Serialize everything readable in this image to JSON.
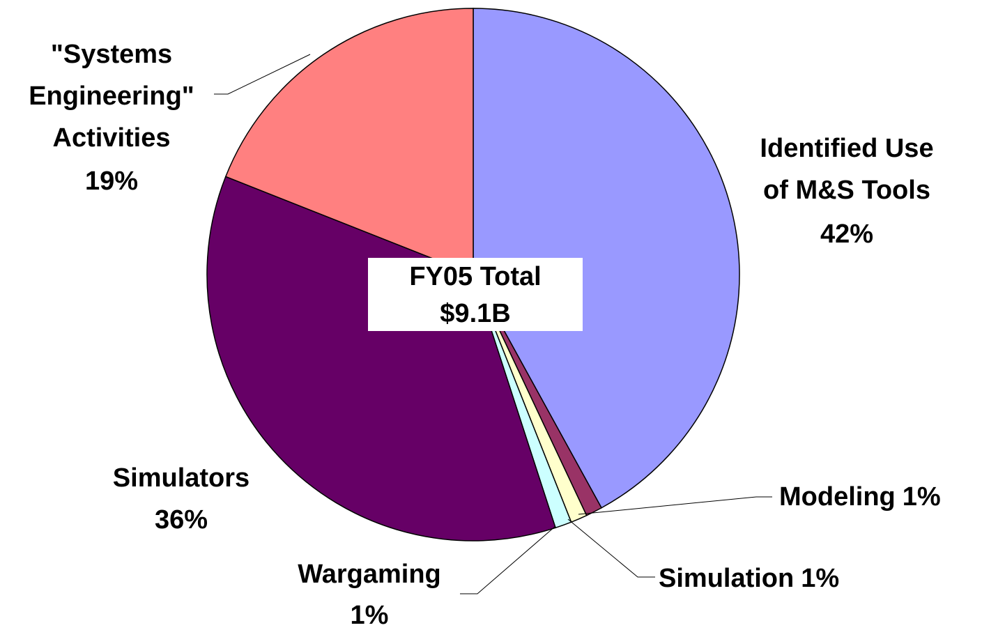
{
  "chart_data": {
    "type": "pie",
    "categories": [
      [
        "Identified Use",
        "of M&S Tools"
      ],
      [
        "Modeling"
      ],
      [
        "Simulation"
      ],
      [
        "Wargaming"
      ],
      [
        "Simulators"
      ],
      [
        "\"Systems",
        "Engineering\"",
        "Activities"
      ]
    ],
    "values": [
      42,
      1,
      1,
      1,
      36,
      19
    ],
    "value_labels": [
      "42%",
      "1%",
      "1%",
      "1%",
      "36%",
      "19%"
    ],
    "colors": [
      "#9999ff",
      "#993366",
      "#ffffcc",
      "#ccffff",
      "#660066",
      "#ff8080"
    ],
    "annotation": [
      "FY05 Total",
      "$9.1B"
    ]
  }
}
